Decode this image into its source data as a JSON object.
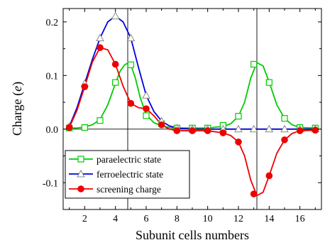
{
  "chart_data": {
    "type": "line",
    "xlabel": "Subunit cells numbers",
    "ylabel_main": "Charge (",
    "ylabel_unit": "e",
    "ylabel_close": ")",
    "xlim": [
      0.6,
      17.4
    ],
    "ylim": [
      -0.15,
      0.225
    ],
    "xticks": [
      2,
      4,
      6,
      8,
      10,
      12,
      14,
      16
    ],
    "yticks": [
      -0.1,
      0.0,
      0.1,
      0.2
    ],
    "ytick_labels": [
      "-0.1",
      "0.0",
      "0.1",
      "0.2"
    ],
    "vlines": [
      4.8,
      13.2
    ],
    "hline": 0,
    "legend_position": "bottom-left",
    "series": [
      {
        "name": "paraelectric state",
        "color": "#00cc00",
        "marker": "square-open",
        "x": [
          1,
          2,
          3,
          4,
          5,
          6,
          7,
          8,
          9,
          10,
          11,
          12,
          13,
          14,
          15,
          16,
          17
        ],
        "y": [
          0.002,
          0.003,
          0.016,
          0.087,
          0.12,
          0.025,
          0.01,
          0.002,
          0.002,
          0.002,
          0.007,
          0.024,
          0.121,
          0.087,
          0.02,
          0.003,
          0.002
        ],
        "curve_x": [
          1,
          1.5,
          2,
          2.5,
          3,
          3.5,
          4,
          4.3,
          4.6,
          4.8,
          5,
          5.3,
          5.6,
          6,
          6.5,
          7,
          7.5,
          8,
          9,
          10,
          11,
          11.5,
          12,
          12.4,
          12.8,
          13.2,
          13.6,
          14,
          14.5,
          15,
          15.5,
          16,
          17
        ],
        "curve_y": [
          0.002,
          0.002,
          0.004,
          0.008,
          0.018,
          0.045,
          0.085,
          0.108,
          0.12,
          0.123,
          0.12,
          0.095,
          0.06,
          0.027,
          0.012,
          0.006,
          0.003,
          0.002,
          0.002,
          0.002,
          0.005,
          0.01,
          0.024,
          0.05,
          0.095,
          0.124,
          0.118,
          0.088,
          0.045,
          0.02,
          0.008,
          0.003,
          0.002
        ]
      },
      {
        "name": "ferroelectric state",
        "color": "#0000dd",
        "marker": "triangle-open",
        "x": [
          1,
          2,
          3,
          4,
          5,
          6,
          7,
          8,
          9,
          10,
          11,
          12,
          13,
          14,
          15,
          16,
          17
        ],
        "y": [
          0.005,
          0.085,
          0.17,
          0.211,
          0.17,
          0.063,
          0.015,
          0.002,
          0.0,
          0.0,
          0.0,
          0.0,
          0.0,
          0.0,
          0.0,
          0.0,
          0.0
        ],
        "curve_x": [
          1,
          1.5,
          2,
          2.5,
          3,
          3.5,
          4,
          4.5,
          5,
          5.5,
          6,
          6.5,
          7,
          7.5,
          8,
          9,
          17
        ],
        "curve_y": [
          0.005,
          0.04,
          0.085,
          0.13,
          0.17,
          0.2,
          0.211,
          0.2,
          0.17,
          0.115,
          0.063,
          0.033,
          0.015,
          0.006,
          0.002,
          0.0,
          0.0
        ]
      },
      {
        "name": "screening charge",
        "color": "#ee0000",
        "marker": "circle-filled",
        "x": [
          1,
          2,
          3,
          4,
          5,
          6,
          7,
          8,
          9,
          10,
          11,
          12,
          13,
          14,
          15,
          16,
          17
        ],
        "y": [
          0.003,
          0.079,
          0.152,
          0.121,
          0.048,
          0.038,
          0.008,
          -0.003,
          -0.003,
          -0.003,
          -0.007,
          -0.024,
          -0.121,
          -0.087,
          -0.02,
          -0.003,
          -0.002
        ],
        "curve_x": [
          1,
          1.5,
          2,
          2.5,
          3,
          3.5,
          4,
          4.5,
          5,
          5.5,
          6,
          6.5,
          7,
          7.5,
          8,
          9,
          10,
          11,
          11.5,
          12,
          12.4,
          12.8,
          13.2,
          13.6,
          14,
          14.5,
          15,
          15.5,
          16,
          17
        ],
        "curve_y": [
          0.003,
          0.035,
          0.079,
          0.125,
          0.152,
          0.148,
          0.121,
          0.08,
          0.048,
          0.04,
          0.038,
          0.025,
          0.008,
          0.0,
          -0.003,
          -0.003,
          -0.003,
          -0.007,
          -0.012,
          -0.024,
          -0.05,
          -0.095,
          -0.124,
          -0.118,
          -0.087,
          -0.045,
          -0.02,
          -0.008,
          -0.003,
          -0.002
        ]
      }
    ]
  }
}
